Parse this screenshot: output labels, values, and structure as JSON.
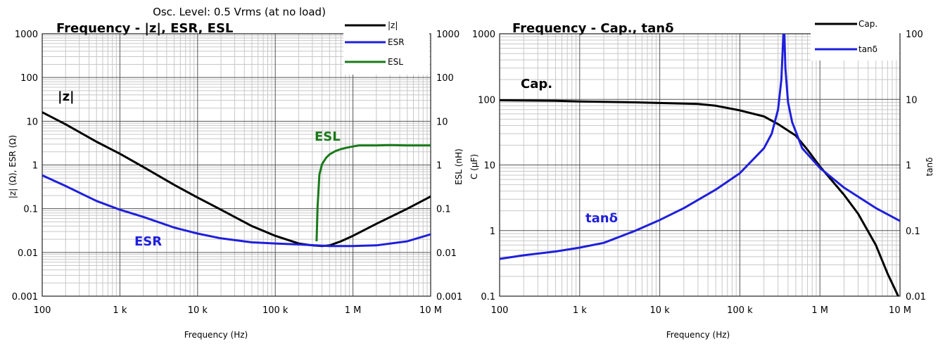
{
  "chart_data": [
    {
      "type": "line",
      "title": "Frequency - |z|, ESR, ESL",
      "subtitle": "Osc. Level: 0.5 Vrms (at no load)",
      "xlabel": "Frequency (Hz)",
      "ylabel": "|z| (Ω), ESR (Ω)",
      "y2label": "ESL (nH)",
      "xscale": "log",
      "yscale": "log",
      "y2scale": "log",
      "xlim": [
        100,
        10000000
      ],
      "ylim": [
        0.001,
        1000
      ],
      "y2lim": [
        0.001,
        1000
      ],
      "xticks": [
        "100",
        "1 k",
        "10 k",
        "100 k",
        "1 M",
        "10 M"
      ],
      "yticks": [
        "0.001",
        "0.01",
        "0.1",
        "1",
        "10",
        "100",
        "1000"
      ],
      "y2ticks": [
        "0.001",
        "0.01",
        "0.1",
        "1",
        "10",
        "100",
        "1000"
      ],
      "grid": true,
      "legend_position": "top-right",
      "annotations": [
        {
          "text": "|z|",
          "color": "#000000"
        },
        {
          "text": "ESL",
          "color": "#1a7a1a"
        },
        {
          "text": "ESR",
          "color": "#1f1fdc"
        }
      ],
      "series": [
        {
          "name": "|z|",
          "color": "#000000",
          "axis": "left",
          "x": [
            100,
            200,
            500,
            1000,
            2000,
            5000,
            10000,
            20000,
            50000,
            100000,
            200000,
            300000,
            400000,
            500000,
            700000,
            1000000,
            2000000,
            5000000,
            10000000
          ],
          "y": [
            16,
            8.5,
            3.4,
            1.8,
            0.9,
            0.35,
            0.18,
            0.095,
            0.04,
            0.024,
            0.016,
            0.0145,
            0.014,
            0.0145,
            0.018,
            0.024,
            0.045,
            0.1,
            0.19
          ]
        },
        {
          "name": "ESR",
          "color": "#1f1fdc",
          "axis": "left",
          "x": [
            100,
            200,
            500,
            1000,
            2000,
            5000,
            10000,
            20000,
            50000,
            100000,
            200000,
            500000,
            1000000,
            2000000,
            5000000,
            10000000
          ],
          "y": [
            0.58,
            0.33,
            0.15,
            0.095,
            0.065,
            0.037,
            0.027,
            0.021,
            0.017,
            0.016,
            0.0152,
            0.014,
            0.014,
            0.0145,
            0.018,
            0.026
          ]
        },
        {
          "name": "ESL",
          "color": "#1a7a1a",
          "axis": "right",
          "x": [
            340000,
            350000,
            370000,
            400000,
            450000,
            500000,
            600000,
            700000,
            800000,
            1000000,
            1200000,
            1500000,
            2000000,
            3000000,
            5000000,
            10000000
          ],
          "y": [
            0.018,
            0.11,
            0.6,
            1.05,
            1.45,
            1.75,
            2.1,
            2.3,
            2.45,
            2.65,
            2.8,
            2.8,
            2.8,
            2.85,
            2.8,
            2.8
          ]
        }
      ]
    },
    {
      "type": "line",
      "title": "Frequency - Cap., tanδ",
      "xlabel": "Frequency (Hz)",
      "ylabel": "C (µF)",
      "y2label": "tanδ",
      "xscale": "log",
      "yscale": "log",
      "y2scale": "log",
      "xlim": [
        100,
        10000000
      ],
      "ylim": [
        0.1,
        1000
      ],
      "y2lim": [
        0.01,
        100
      ],
      "xticks": [
        "100",
        "1 k",
        "10 k",
        "100 k",
        "1 M",
        "10 M"
      ],
      "yticks": [
        "0.1",
        "1",
        "10",
        "100",
        "1000"
      ],
      "y2ticks": [
        "0.01",
        "0.1",
        "1",
        "10",
        "100"
      ],
      "grid": true,
      "legend_position": "top-right",
      "annotations": [
        {
          "text": "Cap.",
          "color": "#000000"
        },
        {
          "text": "tanδ",
          "color": "#1f1fdc"
        }
      ],
      "series": [
        {
          "name": "Cap.",
          "color": "#000000",
          "axis": "left",
          "x": [
            100,
            500,
            1000,
            5000,
            10000,
            30000,
            50000,
            100000,
            200000,
            300000,
            500000,
            700000,
            1000000,
            2000000,
            3000000,
            5000000,
            7000000,
            9500000
          ],
          "y": [
            97,
            95,
            93,
            90,
            88,
            85,
            80,
            68,
            55,
            42,
            28,
            17,
            9.5,
            3.5,
            1.8,
            0.6,
            0.22,
            0.1
          ]
        },
        {
          "name": "tanδ",
          "color": "#1f1fdc",
          "axis": "right",
          "x": [
            100,
            200,
            500,
            1000,
            2000,
            5000,
            10000,
            20000,
            50000,
            100000,
            200000,
            250000,
            300000,
            330000,
            350000,
            360000,
            370000,
            400000,
            450000,
            600000,
            1000000,
            2000000,
            5000000,
            10000000
          ],
          "y": [
            0.037,
            0.042,
            0.048,
            0.055,
            0.065,
            0.1,
            0.145,
            0.22,
            0.42,
            0.75,
            1.8,
            3.0,
            7.0,
            20,
            100,
            100,
            30,
            9,
            4.5,
            1.8,
            0.9,
            0.45,
            0.22,
            0.14
          ]
        }
      ]
    }
  ]
}
